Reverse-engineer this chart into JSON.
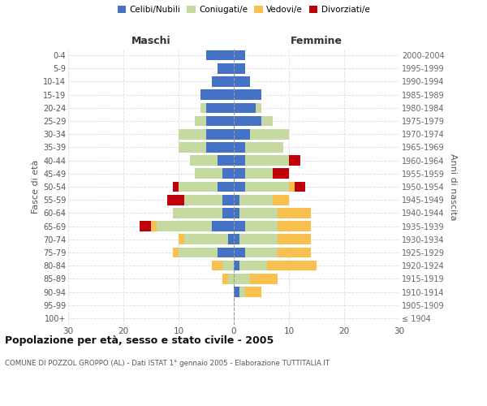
{
  "age_groups": [
    "100+",
    "95-99",
    "90-94",
    "85-89",
    "80-84",
    "75-79",
    "70-74",
    "65-69",
    "60-64",
    "55-59",
    "50-54",
    "45-49",
    "40-44",
    "35-39",
    "30-34",
    "25-29",
    "20-24",
    "15-19",
    "10-14",
    "5-9",
    "0-4"
  ],
  "birth_years": [
    "≤ 1904",
    "1905-1909",
    "1910-1914",
    "1915-1919",
    "1920-1924",
    "1925-1929",
    "1930-1934",
    "1935-1939",
    "1940-1944",
    "1945-1949",
    "1950-1954",
    "1955-1959",
    "1960-1964",
    "1965-1969",
    "1970-1974",
    "1975-1979",
    "1980-1984",
    "1985-1989",
    "1990-1994",
    "1995-1999",
    "2000-2004"
  ],
  "male": {
    "celibi": [
      0,
      0,
      0,
      0,
      0,
      3,
      1,
      4,
      2,
      2,
      3,
      2,
      3,
      5,
      5,
      5,
      5,
      6,
      4,
      3,
      5
    ],
    "coniugati": [
      0,
      0,
      0,
      1,
      2,
      7,
      8,
      10,
      9,
      7,
      7,
      5,
      5,
      5,
      5,
      2,
      1,
      0,
      0,
      0,
      0
    ],
    "vedovi": [
      0,
      0,
      0,
      1,
      2,
      1,
      1,
      1,
      0,
      0,
      0,
      0,
      0,
      0,
      0,
      0,
      0,
      0,
      0,
      0,
      0
    ],
    "divorziati": [
      0,
      0,
      0,
      0,
      0,
      0,
      0,
      2,
      0,
      3,
      1,
      0,
      0,
      0,
      0,
      0,
      0,
      0,
      0,
      0,
      0
    ]
  },
  "female": {
    "nubili": [
      0,
      0,
      1,
      0,
      1,
      2,
      1,
      2,
      1,
      1,
      2,
      2,
      2,
      2,
      3,
      5,
      4,
      5,
      3,
      2,
      2
    ],
    "coniugate": [
      0,
      0,
      1,
      3,
      5,
      6,
      7,
      6,
      7,
      6,
      8,
      5,
      8,
      7,
      7,
      2,
      1,
      0,
      0,
      0,
      0
    ],
    "vedove": [
      0,
      0,
      3,
      5,
      9,
      6,
      6,
      6,
      6,
      3,
      1,
      0,
      0,
      0,
      0,
      0,
      0,
      0,
      0,
      0,
      0
    ],
    "divorziate": [
      0,
      0,
      0,
      0,
      0,
      0,
      0,
      0,
      0,
      0,
      2,
      3,
      2,
      0,
      0,
      0,
      0,
      0,
      0,
      0,
      0
    ]
  },
  "colors": {
    "celibi_nubili": "#4472C4",
    "coniugati": "#C5D9A0",
    "vedovi": "#F9C050",
    "divorziati": "#C0000B"
  },
  "xlim": 30,
  "title": "Popolazione per età, sesso e stato civile - 2005",
  "subtitle": "COMUNE DI POZZOL GROPPO (AL) - Dati ISTAT 1° gennaio 2005 - Elaborazione TUTTITALIA.IT",
  "ylabel_left": "Fasce di età",
  "ylabel_right": "Anni di nascita",
  "header_left": "Maschi",
  "header_right": "Femmine",
  "bg_color": "#ffffff",
  "grid_color": "#dddddd"
}
